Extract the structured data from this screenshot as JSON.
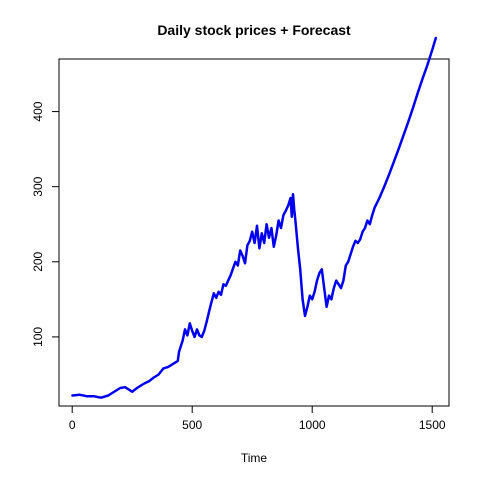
{
  "chart_data": {
    "type": "line",
    "title": "Daily stock prices + Forecast",
    "xlabel": "Time",
    "ylabel": "",
    "xlim": [
      -55,
      1570
    ],
    "ylim": [
      8,
      470
    ],
    "x_ticks": [
      0,
      500,
      1000,
      1500
    ],
    "x_tick_labels": [
      "0",
      "500",
      "1000",
      "1500"
    ],
    "y_ticks": [
      100,
      200,
      300,
      400
    ],
    "y_tick_labels": [
      "100",
      "200",
      "300",
      "400"
    ],
    "grid": false,
    "legend": "none",
    "series_color": "#0000ee",
    "series": [
      {
        "name": "",
        "x": [
          1,
          30,
          60,
          90,
          120,
          150,
          180,
          200,
          220,
          240,
          250,
          270,
          300,
          320,
          340,
          360,
          380,
          400,
          420,
          440,
          445,
          460,
          470,
          480,
          490,
          500,
          510,
          520,
          530,
          540,
          550,
          560,
          575,
          590,
          600,
          610,
          620,
          630,
          640,
          660,
          680,
          690,
          700,
          710,
          720,
          730,
          740,
          750,
          760,
          770,
          780,
          790,
          800,
          810,
          820,
          830,
          840,
          850,
          860,
          870,
          880,
          890,
          900,
          910,
          915,
          920,
          925,
          930,
          940,
          950,
          960,
          970,
          980,
          990,
          1000,
          1010,
          1020,
          1030,
          1040,
          1050,
          1060,
          1070,
          1080,
          1090,
          1100,
          1110,
          1120,
          1130,
          1140,
          1150,
          1160,
          1170,
          1180,
          1190,
          1200,
          1210,
          1220,
          1230,
          1240,
          1250,
          1260,
          1280,
          1300,
          1320,
          1340,
          1360,
          1380,
          1400,
          1420,
          1440,
          1460,
          1480,
          1500,
          1515
        ],
        "values": [
          22,
          23,
          21,
          21,
          19,
          22,
          28,
          32,
          33,
          29,
          27,
          32,
          38,
          41,
          46,
          50,
          58,
          60,
          64,
          68,
          80,
          95,
          110,
          102,
          118,
          108,
          100,
          110,
          102,
          100,
          108,
          120,
          140,
          158,
          152,
          160,
          156,
          170,
          168,
          182,
          200,
          195,
          215,
          208,
          198,
          222,
          228,
          240,
          225,
          248,
          218,
          238,
          225,
          250,
          232,
          245,
          220,
          235,
          255,
          245,
          262,
          268,
          275,
          285,
          260,
          290,
          270,
          255,
          220,
          190,
          150,
          128,
          140,
          155,
          150,
          160,
          175,
          185,
          190,
          165,
          140,
          155,
          150,
          165,
          175,
          170,
          165,
          175,
          195,
          200,
          210,
          220,
          228,
          225,
          230,
          240,
          245,
          255,
          250,
          262,
          272,
          285,
          300,
          316,
          333,
          350,
          368,
          386,
          405,
          425,
          444,
          462,
          482,
          498
        ]
      }
    ]
  }
}
